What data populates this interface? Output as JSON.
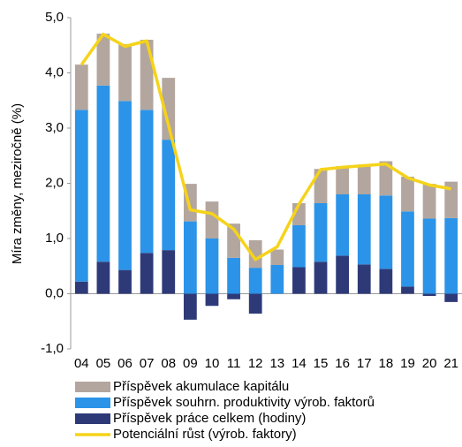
{
  "chart_data": {
    "type": "bar",
    "stacked": true,
    "y_label": "Míra změny, meziročně (%)",
    "categories": [
      "04",
      "05",
      "06",
      "07",
      "08",
      "09",
      "10",
      "11",
      "12",
      "13",
      "14",
      "15",
      "16",
      "17",
      "18",
      "19",
      "20",
      "21"
    ],
    "series": [
      {
        "name": "Příspěvek akumulace kapitálu",
        "color": "#b3a69e",
        "values": [
          0.82,
          0.94,
          1.03,
          1.27,
          1.12,
          0.68,
          0.67,
          0.62,
          0.5,
          0.28,
          0.4,
          0.62,
          0.51,
          0.54,
          0.62,
          0.63,
          0.63,
          0.66
        ]
      },
      {
        "name": "Příspěvek souhrn. produktivity výrob. faktorů",
        "color": "#2b94e8",
        "values": [
          3.11,
          3.19,
          3.06,
          2.59,
          2.0,
          1.31,
          1.0,
          0.65,
          0.47,
          0.52,
          0.76,
          1.06,
          1.11,
          1.27,
          1.33,
          1.36,
          1.36,
          1.37
        ]
      },
      {
        "name": "Příspěvek práce celkem (hodiny)",
        "color": "#2e3a78",
        "values": [
          0.22,
          0.58,
          0.43,
          0.74,
          0.79,
          -0.47,
          -0.22,
          -0.1,
          -0.36,
          0,
          0.48,
          0.58,
          0.69,
          0.53,
          0.45,
          0.13,
          -0.04,
          -0.15
        ]
      },
      {
        "name": "Potenciální růst (výrob. faktory)",
        "type": "line",
        "color": "#f5d31a",
        "values": [
          4.15,
          4.7,
          4.48,
          4.58,
          3.05,
          1.52,
          1.45,
          1.17,
          0.62,
          0.85,
          1.62,
          2.25,
          2.29,
          2.32,
          2.35,
          2.1,
          1.97,
          1.9
        ]
      }
    ],
    "ylim": [
      -1,
      5
    ],
    "yticks": [
      {
        "value": -1,
        "label": "-1,0"
      },
      {
        "value": 0,
        "label": "0,0"
      },
      {
        "value": 1,
        "label": "1,0"
      },
      {
        "value": 2,
        "label": "2,0"
      },
      {
        "value": 3,
        "label": "3,0"
      },
      {
        "value": 4,
        "label": "4,0"
      },
      {
        "value": 5,
        "label": "5,0"
      }
    ]
  }
}
